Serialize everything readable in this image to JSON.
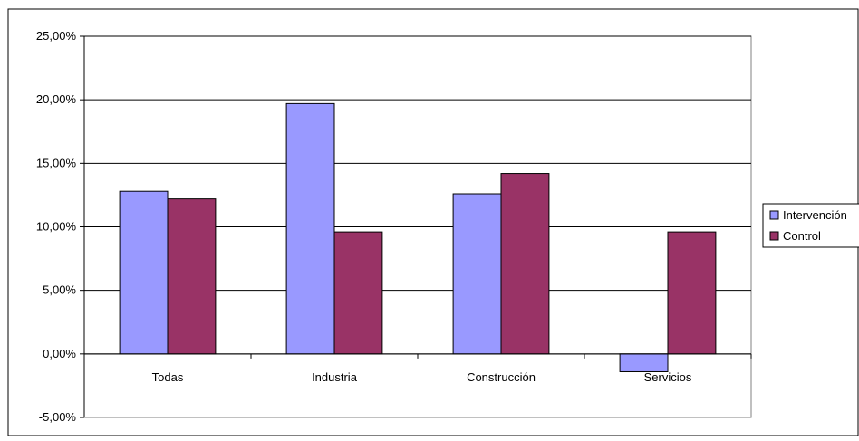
{
  "chart_data": {
    "type": "bar",
    "title": "",
    "xlabel": "",
    "ylabel": "",
    "categories": [
      "Todas",
      "Industria",
      "Construcción",
      "Servicios"
    ],
    "series": [
      {
        "name": "Intervención",
        "color": "#9999ff",
        "values": [
          12.8,
          19.7,
          12.6,
          -1.4
        ]
      },
      {
        "name": "Control",
        "color": "#993366",
        "values": [
          12.2,
          9.6,
          14.2,
          9.6
        ]
      }
    ],
    "ylim": [
      -5,
      25
    ],
    "yticks": [
      -5,
      0,
      5,
      10,
      15,
      20,
      25
    ],
    "ytick_labels": [
      "-5,00%",
      "0,00%",
      "5,00%",
      "10,00%",
      "15,00%",
      "20,00%",
      "25,00%"
    ],
    "grid": true,
    "legend": "right"
  }
}
